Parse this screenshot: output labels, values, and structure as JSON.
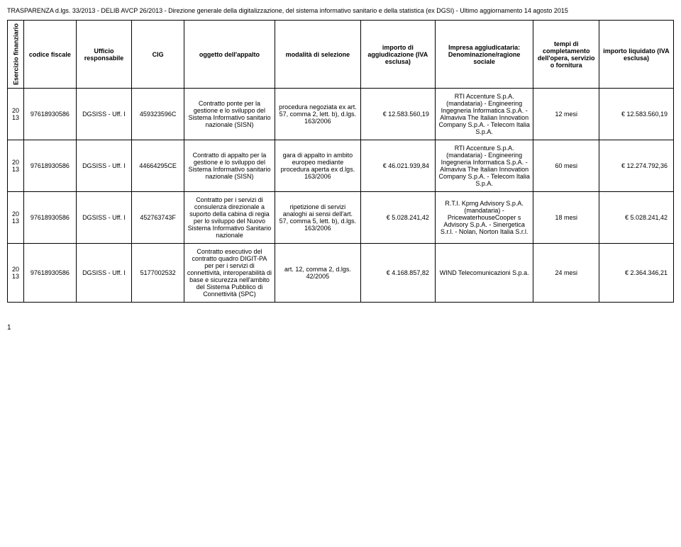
{
  "title": "TRASPARENZA d.lgs. 33/2013 - DELIB AVCP 26/2013 - Direzione generale della digitalizzazione, del sistema informativo sanitario e della statistica (ex DGSI) - Ultimo aggiornamento 14 agosto 2015",
  "headers": {
    "esercizio": "Esercizio finanziario",
    "codice": "codice fiscale",
    "ufficio": "Ufficio responsabile",
    "cig": "CIG",
    "oggetto": "oggetto dell'appalto",
    "modalita": "modalità di selezione",
    "importo_agg": "importo di aggiudicazione (IVA esclusa)",
    "impresa": "Impresa aggiudicataria: Denominazione/ragione sociale",
    "tempi": "tempi di completamento dell'opera, servizio o fornitura",
    "importo_liq": "importo liquidato (IVA esclusa)"
  },
  "rows": [
    {
      "esercizio": "2013",
      "codice": "97618930586",
      "ufficio": "DGSISS - Uff. I",
      "cig": "459323596C",
      "oggetto": "Contratto ponte per la gestione e lo sviluppo del Sistema Informativo sanitario nazionale (SISN)",
      "modalita": "procedura negoziata ex art. 57, comma 2, lett. b), d.lgs. 163/2006",
      "importo_agg": "€     12.583.560,19",
      "impresa": "RTI Accenture S.p.A. (mandataria) - Engineering Ingegneria Informatica S.p.A. - Almaviva The Italian Innovation Company S.p.A. - Telecom Italia S.p.A.",
      "tempi": "12 mesi",
      "importo_liq": "€     12.583.560,19"
    },
    {
      "esercizio": "2013",
      "codice": "97618930586",
      "ufficio": "DGSISS - Uff. I",
      "cig": "44664295CE",
      "oggetto": "Contratto di appalto per la gestione e lo sviluppo del Sistema Informativo sanitario nazionale (SISN)",
      "modalita": "gara di appalto in ambito europeo mediante procedura aperta ex d.lgs. 163/2006",
      "importo_agg": "€     46.021.939,84",
      "impresa": "RTI Accenture S.p.A. (mandataria) - Engineering Ingegneria Informatica S.p.A. - Almaviva The Italian Innovation Company S.p.A. - Telecom Italia S.p.A.",
      "tempi": "60 mesi",
      "importo_liq": "€     12.274.792,36"
    },
    {
      "esercizio": "2013",
      "codice": "97618930586",
      "ufficio": "DGSISS - Uff. I",
      "cig": "452763743F",
      "oggetto": "Contratto per i servizi di consulenza direzionale a suporto della cabina di regia per lo sviluppo del Nuovo Sistema Informativo Sanitario nazionale",
      "modalita": "ripetizione di servizi analoghi ai sensi dell'art. 57, comma 5, lett. b), d.lgs. 163/2006",
      "importo_agg": "€       5.028.241,42",
      "impresa": "R.T.I. Kpmg Advisory S.p.A. (mandataria) - PricewaterhouseCooper s Advisory S.p.A. - Sinergetica S.r.l. - Nolan, Norton Italia S.r.l.",
      "tempi": "18 mesi",
      "importo_liq": "€       5.028.241,42"
    },
    {
      "esercizio": "2013",
      "codice": "97618930586",
      "ufficio": "DGSISS - Uff. I",
      "cig": "5177002532",
      "oggetto": "Contratto esecutivo del contratto quadro DIGIT-PA per per i servizi di connettività, interoperabilità di base e sicurezza nell'ambito del Sistema Pubblico di Connettività (SPC)",
      "modalita": "art. 12, comma 2, d.lgs. 42/2005",
      "importo_agg": "€       4.168.857,82",
      "impresa": "WIND Telecomunicazioni S.p.a.",
      "tempi": "24 mesi",
      "importo_liq": "€       2.364.346,21"
    }
  ],
  "pageNumber": "1"
}
